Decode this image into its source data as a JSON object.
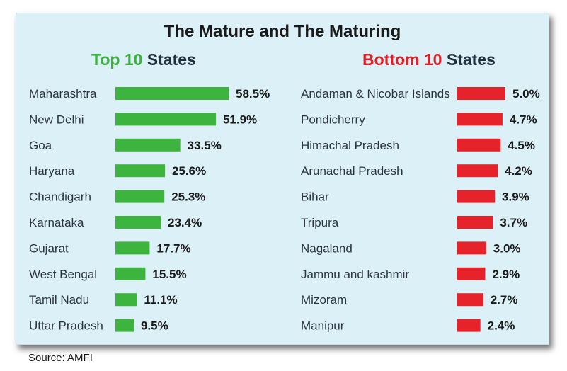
{
  "title": "The Mature and  The Maturing",
  "source": "Source: AMFI",
  "colors": {
    "top": "#3db43d",
    "bottom": "#e6232a",
    "background": "#dcf0f8"
  },
  "chart_data": [
    {
      "type": "bar",
      "orientation": "horizontal",
      "subtitle_accent": "Top 10",
      "subtitle_rest": " States",
      "categories": [
        "Maharashtra",
        "New  Delhi",
        "Goa",
        "Haryana",
        "Chandigarh",
        "Karnataka",
        "Gujarat",
        "West Bengal",
        "Tamil Nadu",
        "Uttar Pradesh"
      ],
      "values": [
        58.5,
        51.9,
        33.5,
        25.6,
        25.3,
        23.4,
        17.7,
        15.5,
        11.1,
        9.5
      ],
      "value_labels": [
        "58.5%",
        "51.9%",
        "33.5%",
        "25.6%",
        "25.3%",
        "23.4%",
        "17.7%",
        "15.5%",
        "11.1%",
        "9.5%"
      ],
      "color": "#3db43d"
    },
    {
      "type": "bar",
      "orientation": "horizontal",
      "subtitle_accent": "Bottom 10",
      "subtitle_rest": " States",
      "categories": [
        "Andaman & Nicobar Islands",
        "Pondicherry",
        "Himachal Pradesh",
        "Arunachal Pradesh",
        "Bihar",
        "Tripura",
        "Nagaland",
        "Jammu and  kashmir",
        "Mizoram",
        "Manipur"
      ],
      "values": [
        5.0,
        4.7,
        4.5,
        4.2,
        3.9,
        3.7,
        3.0,
        2.9,
        2.7,
        2.4
      ],
      "value_labels": [
        "5.0%",
        "4.7%",
        "4.5%",
        "4.2%",
        "3.9%",
        "3.7%",
        "3.0%",
        "2.9%",
        "2.7%",
        "2.4%"
      ],
      "color": "#e6232a"
    }
  ]
}
